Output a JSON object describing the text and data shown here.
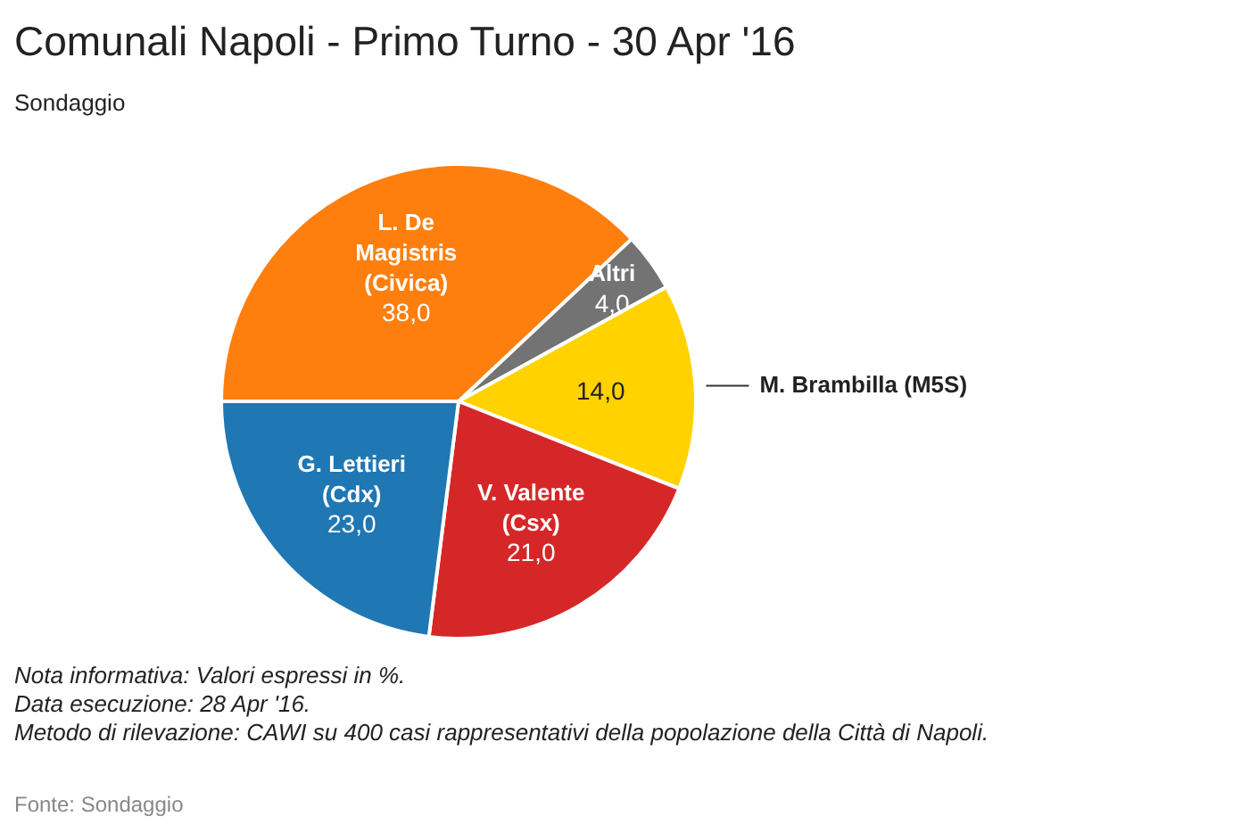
{
  "chart_data": {
    "type": "pie",
    "title": "Comunali Napoli - Primo Turno - 30 Apr '16",
    "subtitle": "Sondaggio",
    "categories": [
      "Altri",
      "M. Brambilla (M5S)",
      "V. Valente (Csx)",
      "G. Lettieri (Cdx)",
      "L. De Magistris (Civica)"
    ],
    "values": [
      4,
      14,
      21,
      23,
      38
    ],
    "colors": [
      "#737373",
      "#ffd200",
      "#d62728",
      "#1f77b4",
      "#ff7f0e"
    ],
    "value_labels": [
      "4,0",
      "14,0",
      "21,0",
      "23,0",
      "38,0"
    ],
    "annotations": [
      "Nota informativa: Valori espressi in %.",
      "Data esecuzione: 28 Apr '16.",
      "Metodo di rilevazione: CAWI su 400 casi rappresentativi della popolazione della Città di Napoli.",
      "Fonte: Sondaggio"
    ]
  }
}
